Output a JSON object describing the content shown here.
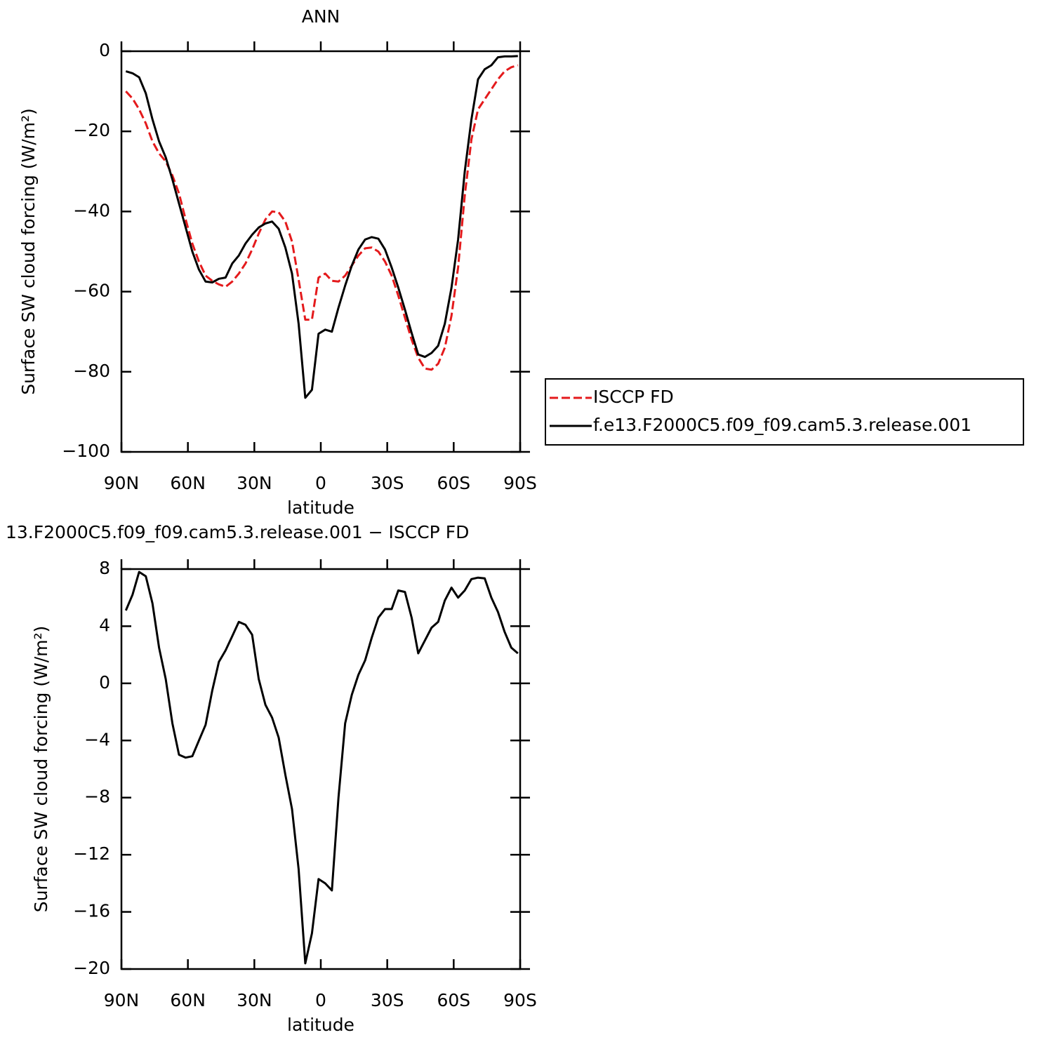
{
  "chart_data": [
    {
      "type": "line",
      "title": "ANN",
      "xlabel": "latitude",
      "ylabel": "Surface SW cloud forcing (W/m²)",
      "x": [
        88,
        85,
        82,
        79,
        76,
        73,
        70,
        67,
        64,
        61,
        58,
        55,
        52,
        49,
        46,
        43,
        40,
        37,
        34,
        31,
        28,
        25,
        22,
        19,
        16,
        13,
        10,
        7,
        4,
        1,
        -2,
        -5,
        -8,
        -11,
        -14,
        -17,
        -20,
        -23,
        -26,
        -29,
        -32,
        -35,
        -38,
        -41,
        -44,
        -47,
        -50,
        -53,
        -56,
        -59,
        -62,
        -65,
        -68,
        -71,
        -74,
        -77,
        -80,
        -83,
        -86,
        -89
      ],
      "xlim": [
        90,
        -90
      ],
      "xticks": [
        {
          "value": 90,
          "label": "90N"
        },
        {
          "value": 60,
          "label": "60N"
        },
        {
          "value": 30,
          "label": "30N"
        },
        0,
        {
          "value": -30,
          "label": "30S"
        },
        {
          "value": -60,
          "label": "60S"
        },
        {
          "value": -90,
          "label": "90S"
        }
      ],
      "ylim": [
        -100,
        0
      ],
      "yticks": [
        {
          "value": -100,
          "label": "−100"
        },
        {
          "value": -80,
          "label": "−80"
        },
        {
          "value": -60,
          "label": "−60"
        },
        {
          "value": -40,
          "label": "−40"
        },
        {
          "value": -20,
          "label": "−20"
        },
        0
      ],
      "legend": "right",
      "series": [
        {
          "name": "ISCCP FD",
          "color": "#e41a1c",
          "dash": "dashed",
          "values": [
            -10,
            -11.8,
            -14.5,
            -18,
            -22.5,
            -25.5,
            -27.5,
            -31,
            -35.5,
            -42,
            -48,
            -52.5,
            -56,
            -57.3,
            -58.2,
            -58.8,
            -57.5,
            -55.5,
            -53,
            -49.5,
            -45.5,
            -42,
            -40,
            -40.2,
            -42.5,
            -47.5,
            -57,
            -67,
            -67,
            -56.5,
            -55.5,
            -57.3,
            -57.5,
            -56,
            -53.5,
            -51,
            -49.2,
            -49,
            -50,
            -52.5,
            -56,
            -61,
            -66.5,
            -72,
            -76.5,
            -79.2,
            -79.5,
            -78,
            -74,
            -66,
            -54,
            -36,
            -22,
            -14.5,
            -12,
            -9.5,
            -7,
            -5,
            -4,
            -3.5
          ]
        },
        {
          "name": "f.e13.F2000C5.f09_f09.cam5.3.release.001",
          "color": "#000000",
          "dash": "solid",
          "values": [
            -5,
            -5.5,
            -6.5,
            -10.5,
            -17,
            -22.5,
            -26.5,
            -32,
            -38,
            -44,
            -50,
            -54.5,
            -57.5,
            -57.7,
            -56.8,
            -56.5,
            -53,
            -51,
            -48,
            -45.8,
            -44,
            -43,
            -42.5,
            -44.3,
            -49,
            -55.5,
            -68,
            -86.5,
            -84.5,
            -70.5,
            -69.5,
            -70,
            -64,
            -58.5,
            -53.5,
            -49.5,
            -47,
            -46.4,
            -46.8,
            -49.5,
            -54,
            -59,
            -64.5,
            -70.3,
            -75.7,
            -76.3,
            -75.3,
            -73.5,
            -68,
            -59,
            -47,
            -30,
            -17,
            -7,
            -4.5,
            -3.5,
            -1.5,
            -1.3,
            -1.3,
            -1.2
          ]
        }
      ]
    },
    {
      "type": "line",
      "title": "13.F2000C5.f09_f09.cam5.3.release.001 − ISCCP FD",
      "xlabel": "latitude",
      "ylabel": "Surface SW cloud forcing (W/m²)",
      "x": [
        88,
        85,
        82,
        79,
        76,
        73,
        70,
        67,
        64,
        61,
        58,
        55,
        52,
        49,
        46,
        43,
        40,
        37,
        34,
        31,
        28,
        25,
        22,
        19,
        16,
        13,
        10,
        7,
        4,
        1,
        -2,
        -5,
        -8,
        -11,
        -14,
        -17,
        -20,
        -23,
        -26,
        -29,
        -32,
        -35,
        -38,
        -41,
        -44,
        -47,
        -50,
        -53,
        -56,
        -59,
        -62,
        -65,
        -68,
        -71,
        -74,
        -77,
        -80,
        -83,
        -86,
        -89
      ],
      "xlim": [
        90,
        -90
      ],
      "xticks": [
        {
          "value": 90,
          "label": "90N"
        },
        {
          "value": 60,
          "label": "60N"
        },
        {
          "value": 30,
          "label": "30N"
        },
        0,
        {
          "value": -30,
          "label": "30S"
        },
        {
          "value": -60,
          "label": "60S"
        },
        {
          "value": -90,
          "label": "90S"
        }
      ],
      "ylim": [
        -20,
        8
      ],
      "yticks": [
        {
          "value": -20,
          "label": "−20"
        },
        {
          "value": -16,
          "label": "−16"
        },
        {
          "value": -12,
          "label": "−12"
        },
        {
          "value": -8,
          "label": "−8"
        },
        {
          "value": -4,
          "label": "−4"
        },
        0,
        4,
        8
      ],
      "series": [
        {
          "color": "#000000",
          "dash": "solid",
          "values": [
            5.1,
            6.2,
            7.8,
            7.5,
            5.6,
            2.5,
            0.3,
            -2.8,
            -5,
            -5.2,
            -5.1,
            -4,
            -2.9,
            -0.5,
            1.5,
            2.3,
            3.3,
            4.3,
            4.1,
            3.4,
            0.3,
            -1.5,
            -2.4,
            -3.8,
            -6.4,
            -8.8,
            -13,
            -19.6,
            -17.5,
            -13.7,
            -14,
            -14.5,
            -8,
            -2.8,
            -0.8,
            0.6,
            1.6,
            3.2,
            4.6,
            5.2,
            5.2,
            6.5,
            6.4,
            4.6,
            2.1,
            3,
            3.9,
            4.3,
            5.8,
            6.7,
            6,
            6.5,
            7.3,
            7.4,
            7.35,
            6,
            5,
            3.6,
            2.5,
            2.1
          ]
        }
      ]
    }
  ]
}
